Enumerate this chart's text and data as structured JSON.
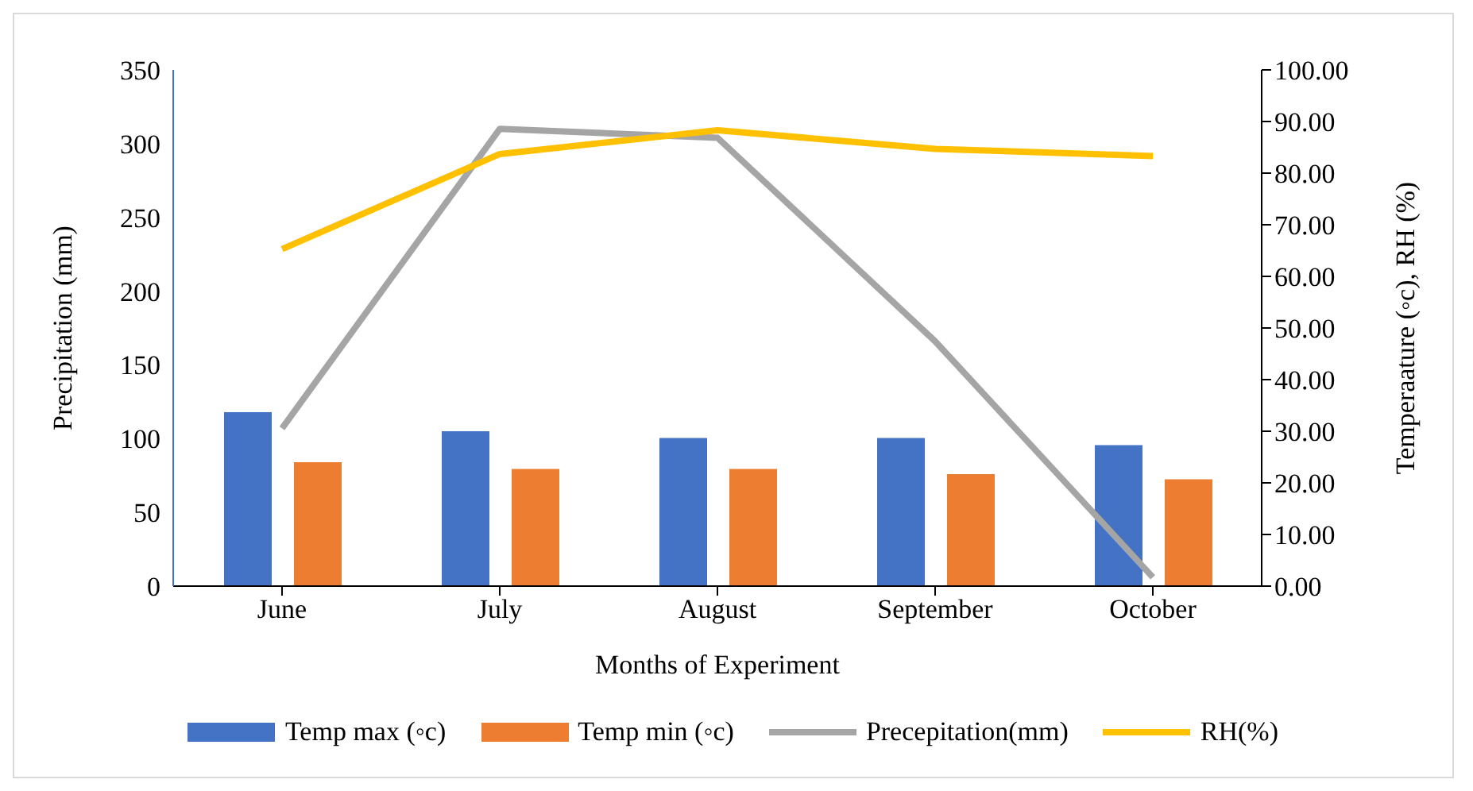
{
  "chart_data": {
    "type": "bar",
    "xlabel": "Months of Experiment",
    "ylabel": "Precipitation (mm)",
    "y2label": "Temperaature (◦c), RH (%)",
    "categories": [
      "June",
      "July",
      "August",
      "September",
      "October"
    ],
    "series": [
      {
        "name": "Temp max (◦c)",
        "axis": "y2",
        "color": "#4472c4",
        "values": [
          33.7,
          30,
          28.7,
          28.7,
          27.3
        ]
      },
      {
        "name": "Temp min (◦c)",
        "axis": "y2",
        "color": "#ed7d31",
        "values": [
          24,
          22.7,
          22.7,
          21.7,
          20.7
        ]
      },
      {
        "name": "Precepitation(mm)",
        "type": "line",
        "axis": "y",
        "color": "#a5a5a5",
        "values": [
          107,
          310,
          304,
          166,
          6
        ]
      },
      {
        "name": "RH(%)",
        "type": "line",
        "axis": "y2",
        "color": "#ffc000",
        "values": [
          65.3,
          83.7,
          88.3,
          84.7,
          83.3
        ]
      }
    ],
    "ylim": [
      0,
      350
    ],
    "yticks": [
      0,
      50,
      100,
      150,
      200,
      250,
      300,
      350
    ],
    "y2lim": [
      0,
      100
    ],
    "y2ticks": [
      {
        "value": 0,
        "label": "0.00"
      },
      {
        "value": 10,
        "label": "10.00"
      },
      {
        "value": 20,
        "label": "20.00"
      },
      {
        "value": 30,
        "label": "30.00"
      },
      {
        "value": 40,
        "label": "40.00"
      },
      {
        "value": 50,
        "label": "50.00"
      },
      {
        "value": 60,
        "label": "60.00"
      },
      {
        "value": 70,
        "label": "70.00"
      },
      {
        "value": 80,
        "label": "80.00"
      },
      {
        "value": 90,
        "label": "90.00"
      },
      {
        "value": 100,
        "label": "100.00"
      }
    ],
    "grid": false,
    "legend": "bottom",
    "marker": "none",
    "line_style": "solid"
  }
}
